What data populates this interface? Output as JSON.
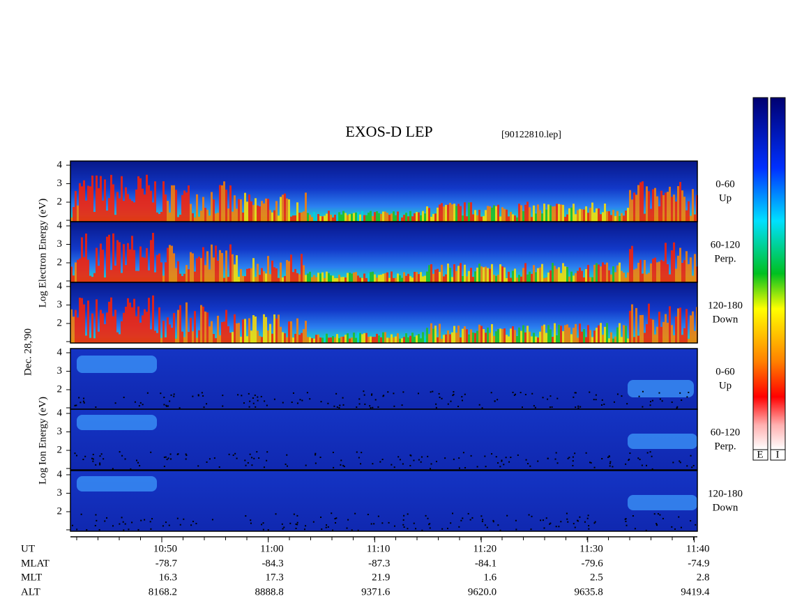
{
  "title": "EXOS-D LEP",
  "file": "[90122810.lep]",
  "electron_axis_label": "Log Electron Energy (eV)",
  "ion_axis_label": "Log Ion Energy (eV)",
  "date": "Dec. 28,'90",
  "energy_ticks": [
    4,
    3,
    2
  ],
  "pitch_angles": [
    {
      "range": "0-60",
      "direction": "Up"
    },
    {
      "range": "60-120",
      "direction": "Perp."
    },
    {
      "range": "120-180",
      "direction": "Down"
    }
  ],
  "ephemeris": {
    "labels": [
      "UT",
      "MLAT",
      "MLT",
      "ALT"
    ],
    "columns": [
      [
        "10:50",
        "-78.7",
        "16.3",
        "8168.2"
      ],
      [
        "11:00",
        "-84.3",
        "17.3",
        "8888.8"
      ],
      [
        "11:10",
        "-87.3",
        "21.9",
        "9371.6"
      ],
      [
        "11:20",
        "-84.1",
        "1.6",
        "9620.0"
      ],
      [
        "11:30",
        "-79.6",
        "2.5",
        "9635.8"
      ],
      [
        "11:40",
        "-74.9",
        "2.8",
        "9419.4"
      ]
    ]
  },
  "colorbar_labels": [
    "E",
    "I"
  ]
}
